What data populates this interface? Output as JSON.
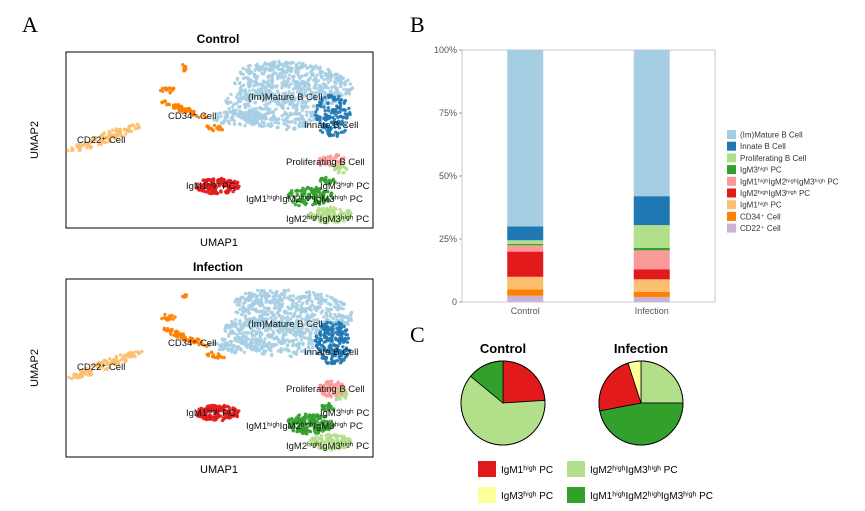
{
  "panels": {
    "a": "A",
    "b": "B",
    "c": "C"
  },
  "umap": {
    "axis_x": "UMAP1",
    "axis_y": "UMAP2",
    "plots": [
      {
        "title": "Control"
      },
      {
        "title": "Infection"
      }
    ],
    "cluster_labels": {
      "mature": "(Im)Mature B Cell",
      "innate": "Innate B Cell",
      "cd34": "CD34⁺ Cell",
      "cd22": "CD22⁺ Cell",
      "prolif": "Proliferating B Cell",
      "igm3": "IgM3ʰⁱᵍʰ PC",
      "igm1": "IgM1ʰⁱᵍʰ PC",
      "igm123": "IgM1ʰⁱᵍʰIgM2ʰⁱᵍʰIgM3ʰⁱᵍʰ PC",
      "igm23": "IgM2ʰⁱᵍʰIgM3ʰⁱᵍʰ PC"
    }
  },
  "colors": {
    "mature": "#a6cee3",
    "innate": "#1f78b4",
    "prolif": "#b2df8a",
    "igm3": "#33a02c",
    "igm123": "#fb9a99",
    "igm23": "#e31a1c",
    "igm1": "#fdbf6f",
    "cd34": "#ff7f00",
    "cd22": "#cab2d6"
  },
  "chart_data": [
    {
      "type": "bar",
      "subtype": "stacked_percent",
      "categories": [
        "Control",
        "Infection"
      ],
      "y_ticks": [
        "0",
        "25%",
        "50%",
        "75%",
        "100%"
      ],
      "ylim": [
        0,
        100
      ],
      "grid": false,
      "legend_position": "right",
      "series": [
        {
          "key": "cd22",
          "name": "CD22⁺ Cell",
          "values": [
            2.5,
            2.0
          ]
        },
        {
          "key": "cd34",
          "name": "CD34⁺ Cell",
          "values": [
            2.5,
            2.0
          ]
        },
        {
          "key": "igm1",
          "name": "IgM1ʰⁱᵍʰ PC",
          "values": [
            5.0,
            5.0
          ]
        },
        {
          "key": "igm23",
          "name": "IgM2ʰⁱᵍʰIgM3ʰⁱᵍʰ PC",
          "values": [
            10.0,
            4.0
          ]
        },
        {
          "key": "igm123",
          "name": "IgM1ʰⁱᵍʰIgM2ʰⁱᵍʰIgM3ʰⁱᵍʰ PC",
          "values": [
            2.5,
            7.5
          ]
        },
        {
          "key": "igm3",
          "name": "IgM3ʰⁱᵍʰ PC",
          "values": [
            0.5,
            1.0
          ]
        },
        {
          "key": "prolif",
          "name": "Proliferating B Cell",
          "values": [
            1.5,
            9.0
          ]
        },
        {
          "key": "innate",
          "name": "Innate B Cell",
          "values": [
            5.5,
            11.5
          ]
        },
        {
          "key": "mature",
          "name": "(Im)Mature B Cell",
          "values": [
            70.0,
            58.0
          ]
        }
      ]
    },
    {
      "type": "pie",
      "title": "Control",
      "slices": [
        {
          "key": "igm23",
          "name": "IgM1ʰⁱᵍʰ PC",
          "value": 24
        },
        {
          "key": "prolif",
          "name": "IgM2ʰⁱᵍʰIgM3ʰⁱᵍʰ PC",
          "value": 62
        },
        {
          "key": "igm3",
          "name": "IgM1ʰⁱᵍʰIgM2ʰⁱᵍʰIgM3ʰⁱᵍʰ PC",
          "value": 14
        },
        {
          "key": "yellow",
          "name": "IgM3ʰⁱᵍʰ PC",
          "value": 0
        }
      ]
    },
    {
      "type": "pie",
      "title": "Infection",
      "slices": [
        {
          "key": "prolif",
          "name": "IgM2ʰⁱᵍʰIgM3ʰⁱᵍʰ PC",
          "value": 25
        },
        {
          "key": "igm3",
          "name": "IgM1ʰⁱᵍʰIgM2ʰⁱᵍʰIgM3ʰⁱᵍʰ PC",
          "value": 47
        },
        {
          "key": "igm23",
          "name": "IgM1ʰⁱᵍʰ PC",
          "value": 23
        },
        {
          "key": "yellow",
          "name": "IgM3ʰⁱᵍʰ PC",
          "value": 5
        }
      ]
    }
  ],
  "pie_legend": [
    {
      "key": "igm23",
      "label": "IgM1ʰⁱᵍʰ PC"
    },
    {
      "key": "prolif",
      "label": "IgM2ʰⁱᵍʰIgM3ʰⁱᵍʰ PC"
    },
    {
      "key": "yellow",
      "label": "IgM3ʰⁱᵍʰ PC"
    },
    {
      "key": "igm3",
      "label": "IgM1ʰⁱᵍʰIgM2ʰⁱᵍʰIgM3ʰⁱᵍʰ PC"
    }
  ],
  "pie_colors": {
    "igm23": "#e31a1c",
    "prolif": "#b2df8a",
    "yellow": "#ffff99",
    "igm3": "#33a02c"
  }
}
